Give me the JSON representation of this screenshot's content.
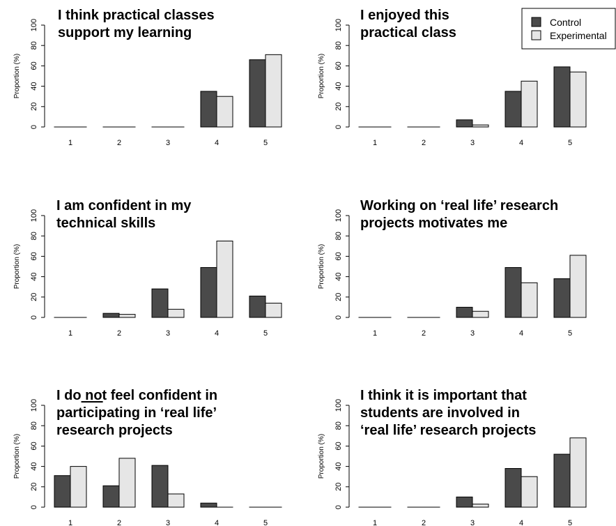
{
  "colors": {
    "control": "#4a4a4a",
    "experimental": "#e6e6e6",
    "stroke": "#000000"
  },
  "legend": {
    "control_label": "Control",
    "experimental_label": "Experimental",
    "placement": "top-right"
  },
  "chart_data": [
    {
      "type": "bar",
      "title_lines": [
        "I think practical classes",
        "support my learning"
      ],
      "ylabel": "Proportion (%)",
      "ylim": [
        0,
        100
      ],
      "yticks": [
        "0",
        "20",
        "40",
        "60",
        "80",
        "100"
      ],
      "categories": [
        "1",
        "2",
        "3",
        "4",
        "5"
      ],
      "series": [
        {
          "name": "Control",
          "values": [
            0,
            0,
            0,
            35,
            66
          ]
        },
        {
          "name": "Experimental",
          "values": [
            0,
            0,
            0,
            30,
            71
          ]
        }
      ]
    },
    {
      "type": "bar",
      "title_lines": [
        "I enjoyed this",
        "practical class"
      ],
      "ylabel": "Proportion (%)",
      "ylim": [
        0,
        100
      ],
      "yticks": [
        "0",
        "20",
        "40",
        "60",
        "80",
        "100"
      ],
      "categories": [
        "1",
        "2",
        "3",
        "4",
        "5"
      ],
      "series": [
        {
          "name": "Control",
          "values": [
            0,
            0,
            7,
            35,
            59
          ]
        },
        {
          "name": "Experimental",
          "values": [
            0,
            0,
            2,
            45,
            54
          ]
        }
      ]
    },
    {
      "type": "bar",
      "title_lines": [
        "I am confident in my",
        "technical skills"
      ],
      "ylabel": "Proportion (%)",
      "ylim": [
        0,
        100
      ],
      "yticks": [
        "0",
        "20",
        "40",
        "60",
        "80",
        "100"
      ],
      "categories": [
        "1",
        "2",
        "3",
        "4",
        "5"
      ],
      "series": [
        {
          "name": "Control",
          "values": [
            0,
            4,
            28,
            49,
            21
          ]
        },
        {
          "name": "Experimental",
          "values": [
            0,
            3,
            8,
            75,
            14
          ]
        }
      ]
    },
    {
      "type": "bar",
      "title_lines": [
        "Working on ‘real life’ research",
        "projects motivates me"
      ],
      "ylabel": "Proportion (%)",
      "ylim": [
        0,
        100
      ],
      "yticks": [
        "0",
        "20",
        "40",
        "60",
        "80",
        "100"
      ],
      "categories": [
        "1",
        "2",
        "3",
        "4",
        "5"
      ],
      "series": [
        {
          "name": "Control",
          "values": [
            0,
            0,
            10,
            49,
            38
          ]
        },
        {
          "name": "Experimental",
          "values": [
            0,
            0,
            6,
            34,
            61
          ]
        }
      ]
    },
    {
      "type": "bar",
      "title_lines": [
        "I do not feel confident in",
        "participating in ‘real life’",
        "research projects"
      ],
      "ylabel": "Proportion (%)",
      "ylim": [
        0,
        100
      ],
      "yticks": [
        "0",
        "20",
        "40",
        "60",
        "80",
        "100"
      ],
      "categories": [
        "1",
        "2",
        "3",
        "4",
        "5"
      ],
      "series": [
        {
          "name": "Control",
          "values": [
            31,
            21,
            41,
            4,
            0
          ]
        },
        {
          "name": "Experimental",
          "values": [
            40,
            48,
            13,
            0,
            0
          ]
        }
      ]
    },
    {
      "type": "bar",
      "title_lines": [
        "I think it is important that",
        "students are involved in",
        "‘real life’ research projects"
      ],
      "ylabel": "Proportion (%)",
      "ylim": [
        0,
        100
      ],
      "yticks": [
        "0",
        "20",
        "40",
        "60",
        "80",
        "100"
      ],
      "categories": [
        "1",
        "2",
        "3",
        "4",
        "5"
      ],
      "series": [
        {
          "name": "Control",
          "values": [
            0,
            0,
            10,
            38,
            52
          ]
        },
        {
          "name": "Experimental",
          "values": [
            0,
            0,
            3,
            30,
            68
          ]
        }
      ]
    }
  ]
}
